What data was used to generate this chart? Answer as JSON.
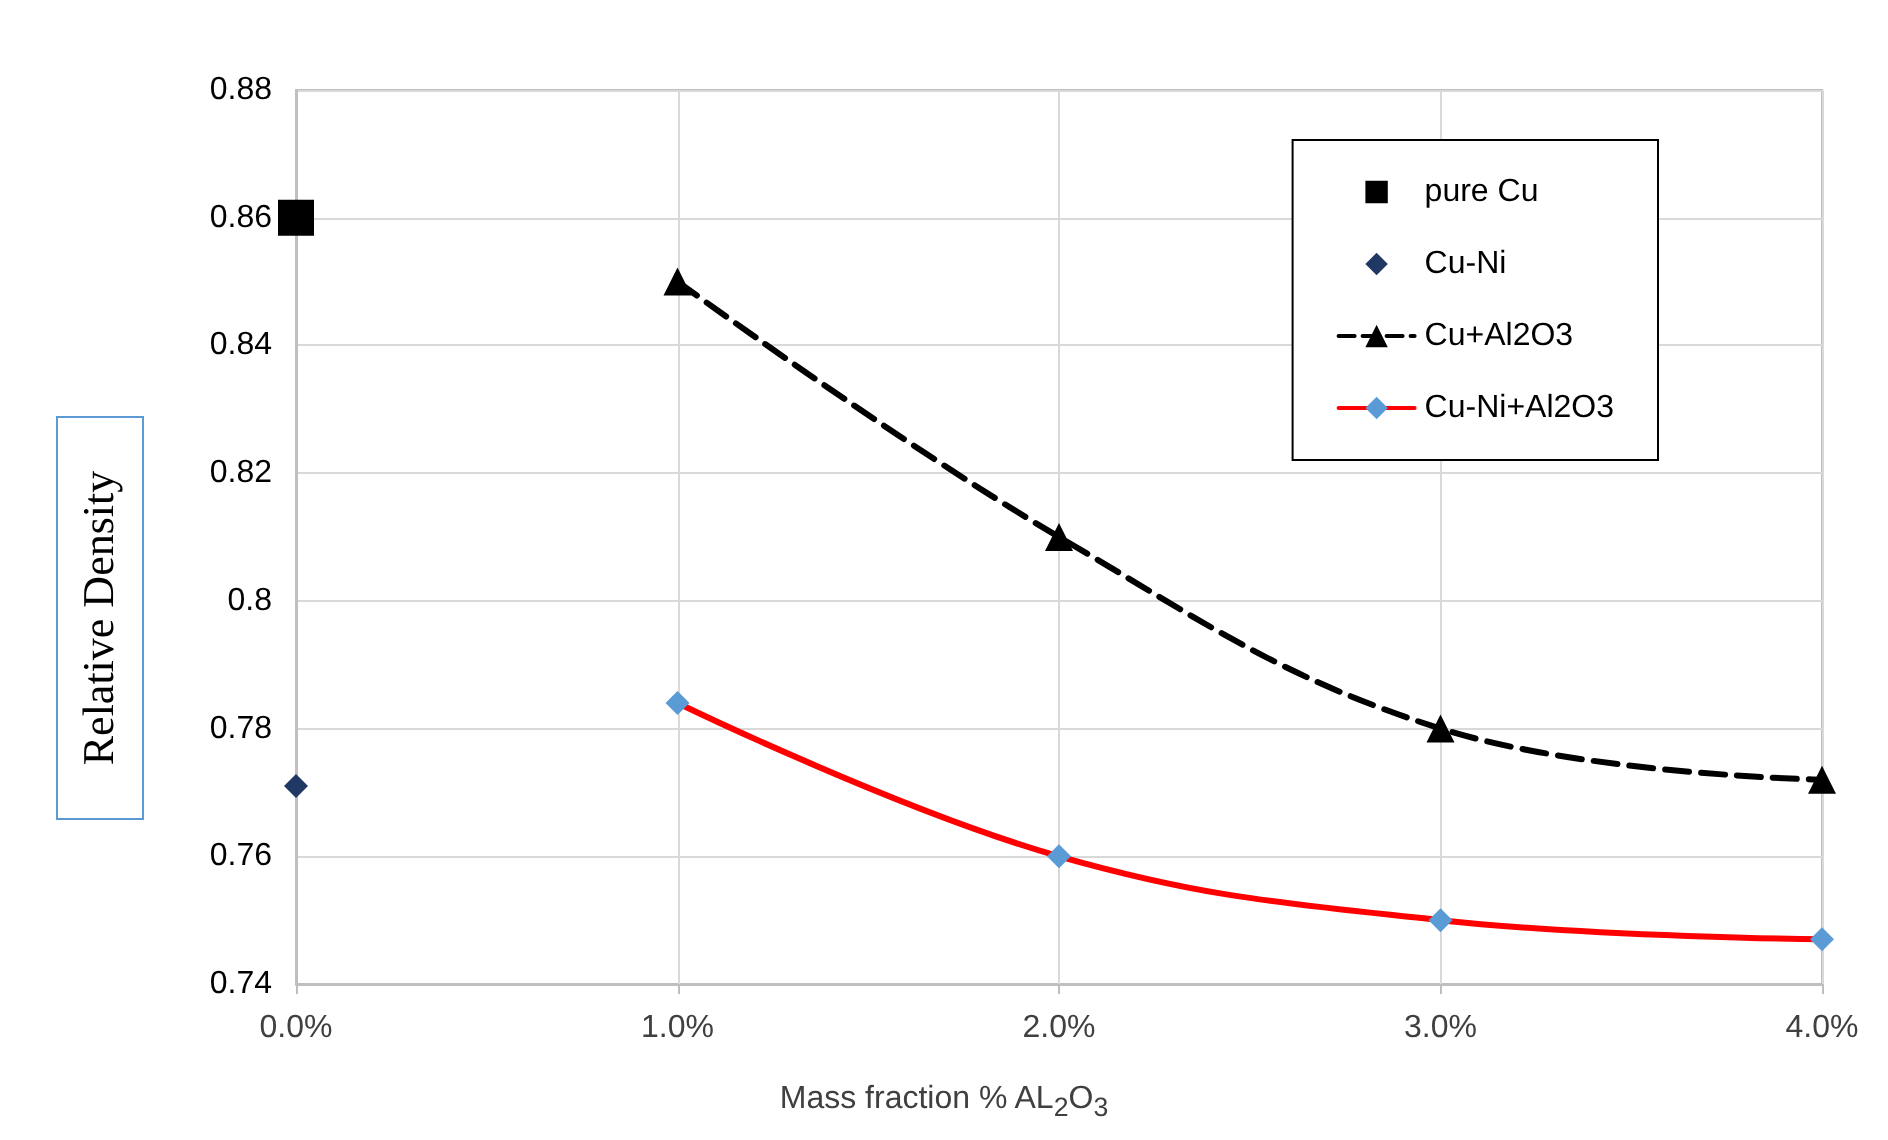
{
  "chart_data": {
    "type": "line",
    "xlabel": "Mass fraction  % AL$_{2}$O$_{3}$",
    "ylabel": "Relative Density",
    "xlim": [
      0,
      4
    ],
    "xticks": [
      {
        "value": 0,
        "label": "0.0%"
      },
      {
        "value": 1,
        "label": "1.0%"
      },
      {
        "value": 2,
        "label": "2.0%"
      },
      {
        "value": 3,
        "label": "3.0%"
      },
      {
        "value": 4,
        "label": "4.0%"
      }
    ],
    "ylim": [
      0.74,
      0.88
    ],
    "yticks": [
      0.74,
      0.76,
      0.78,
      0.8,
      0.82,
      0.84,
      0.86,
      0.88
    ],
    "grid": true,
    "legend": "top right",
    "series": [
      {
        "name": "pure Cu",
        "color": "#000000",
        "marker": "square",
        "x": [
          0
        ],
        "values": [
          0.86
        ]
      },
      {
        "name": "Cu-Ni",
        "color": "#1f3864",
        "marker": "diamond",
        "x": [
          0
        ],
        "values": [
          0.771
        ]
      },
      {
        "name": "Cu+Al2O3",
        "color": "#000000",
        "marker": "triangle",
        "line_style": "dashed",
        "x": [
          1,
          2,
          3,
          4
        ],
        "values": [
          0.85,
          0.81,
          0.78,
          0.772
        ]
      },
      {
        "name": "Cu-Ni+Al2O3",
        "color": "#ff0000",
        "colors": [
          "#5b9bd5",
          "#5b9bd5",
          "#5b9bd5",
          "#5b9bd5"
        ],
        "marker": "diamond",
        "line_style": "solid",
        "x": [
          1,
          2,
          3,
          4
        ],
        "values": [
          0.784,
          0.76,
          0.75,
          0.747
        ]
      }
    ]
  }
}
